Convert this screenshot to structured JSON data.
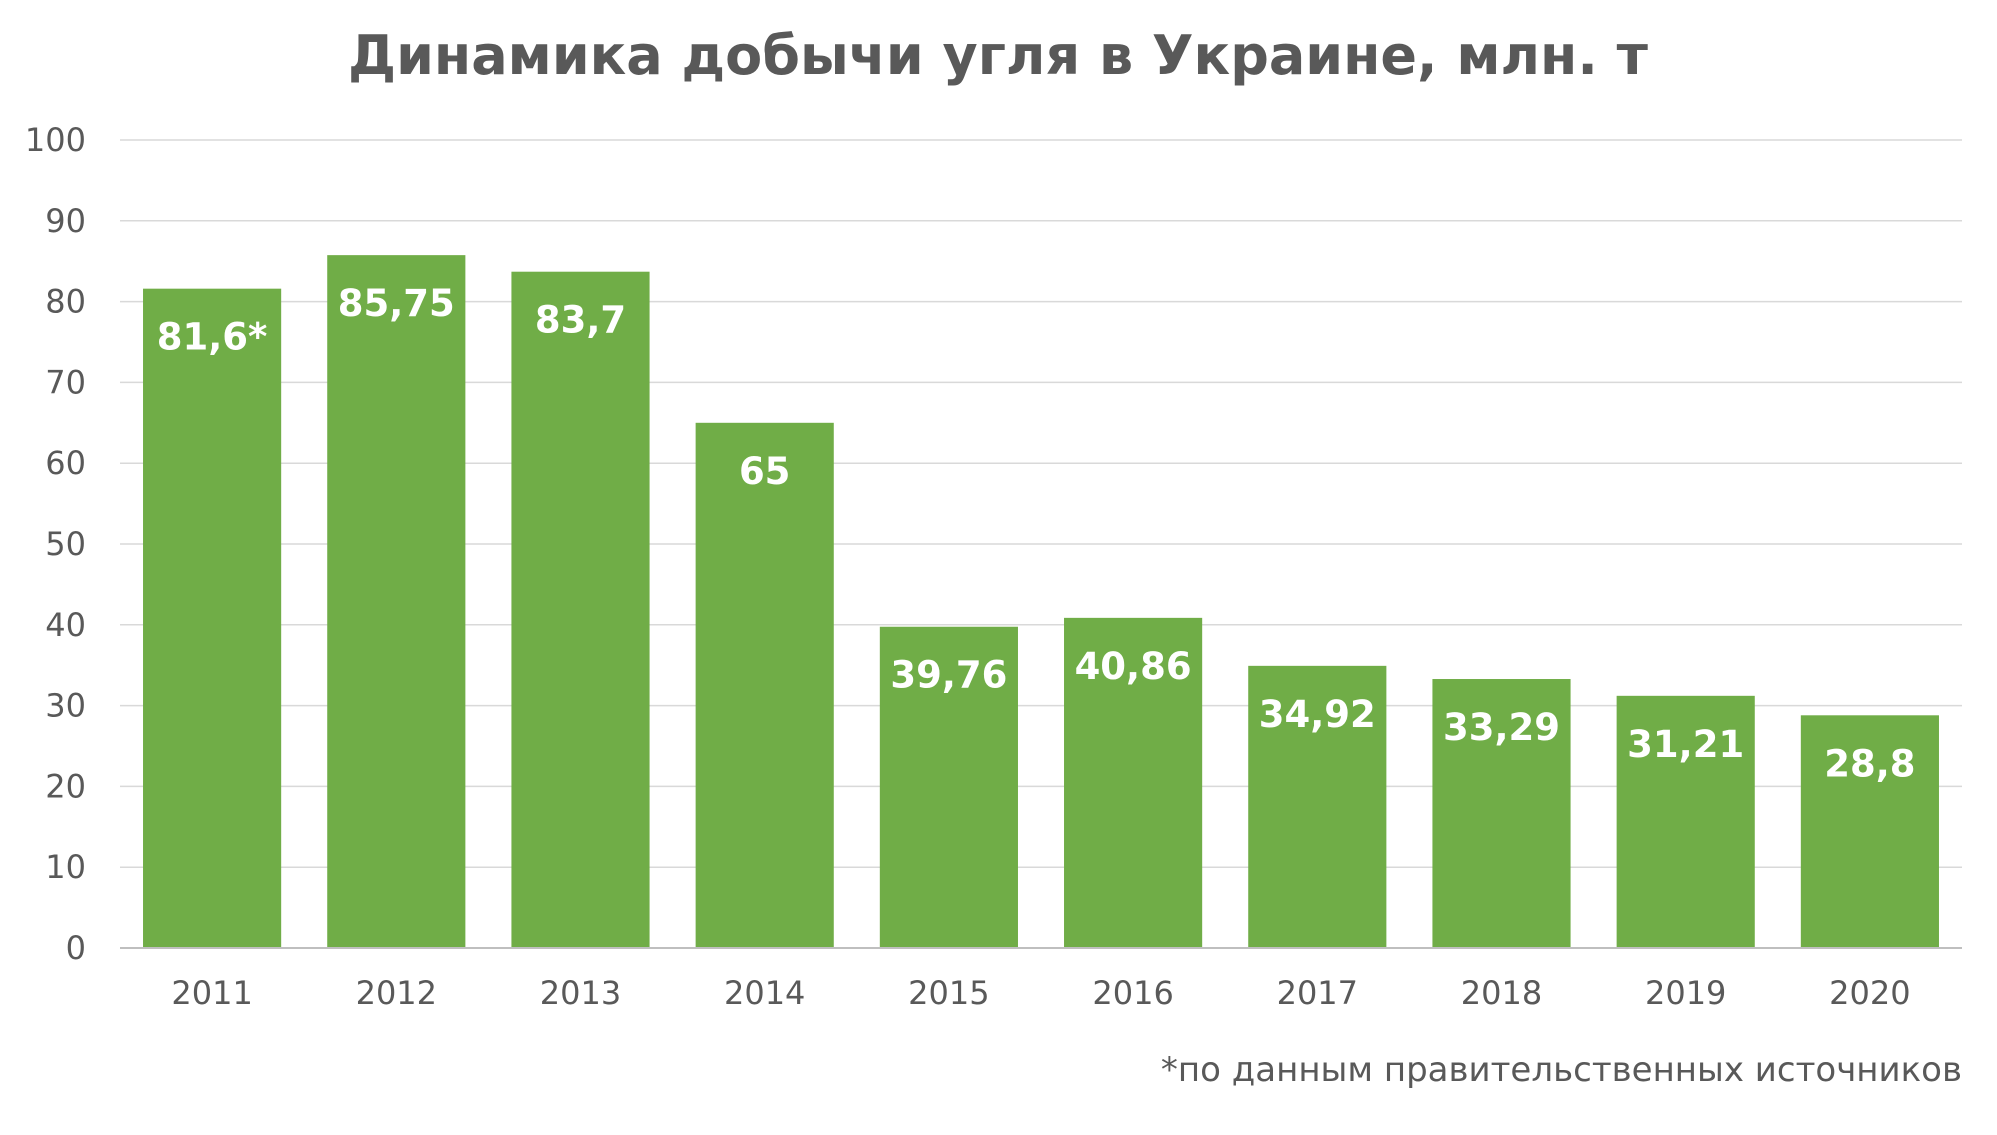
{
  "chart_data": {
    "type": "bar",
    "title": "Динамика добычи угля в Украине, млн. т",
    "categories": [
      "2011",
      "2012",
      "2013",
      "2014",
      "2015",
      "2016",
      "2017",
      "2018",
      "2019",
      "2020"
    ],
    "values": [
      81.6,
      85.75,
      83.7,
      65,
      39.76,
      40.86,
      34.92,
      33.29,
      31.21,
      28.8
    ],
    "data_labels": [
      "81,6*",
      "85,75",
      "83,7",
      "65",
      "39,76",
      "40,86",
      "34,92",
      "33,29",
      "31,21",
      "28,8"
    ],
    "yticks": [
      "0",
      "10",
      "20",
      "30",
      "40",
      "50",
      "60",
      "70",
      "80",
      "90",
      "100"
    ],
    "ylim": [
      0,
      100
    ],
    "xlabel": "",
    "ylabel": "",
    "grid": true,
    "legend": "none",
    "colors": {
      "bar": "#70AD47",
      "grid": "#D9D9D9",
      "axis": "#BFBFBF",
      "text": "#595959",
      "label": "#FFFFFF"
    },
    "footnote": "*по данным правительственных источников"
  }
}
